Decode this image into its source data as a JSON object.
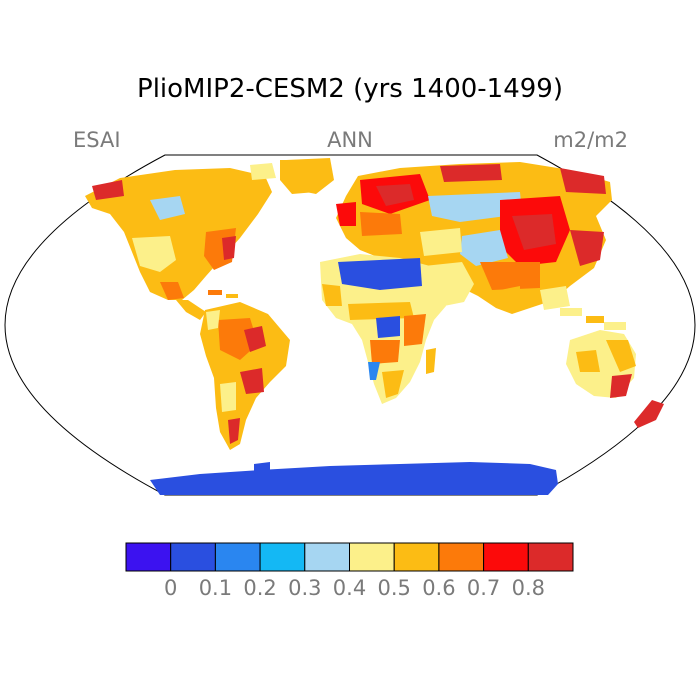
{
  "title": "PlioMIP2-CESM2 (yrs 1400-1499)",
  "subtitle": {
    "left": "ESAI",
    "center": "ANN",
    "right": "m2/m2"
  },
  "colorbar": {
    "colors": [
      "#3c12f0",
      "#2a4fe0",
      "#2a86f0",
      "#14b8f4",
      "#a6d6f2",
      "#fcf08a",
      "#fcbc14",
      "#fc7a0a",
      "#fc0a0a",
      "#dc2a2a"
    ],
    "labels": [
      "0",
      "0.1",
      "0.2",
      "0.3",
      "0.4",
      "0.5",
      "0.6",
      "0.7",
      "0.8"
    ]
  },
  "legend_icons": [
    "robinson-map-outline",
    "land-color-shading"
  ]
}
